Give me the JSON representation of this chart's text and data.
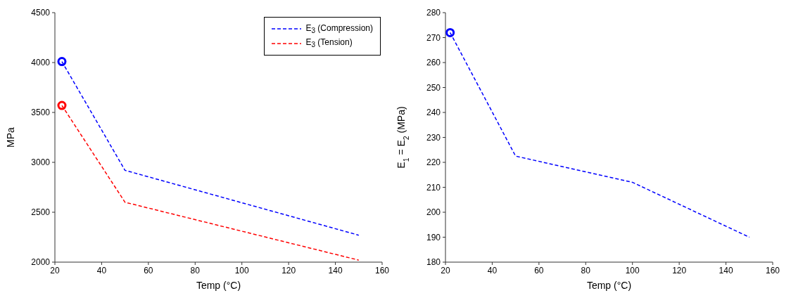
{
  "chart_data": [
    {
      "type": "line",
      "xlabel": "Temp (°C)",
      "ylabel": "MPa",
      "xlim": [
        20,
        160
      ],
      "xticks": [
        20,
        40,
        60,
        80,
        100,
        120,
        140,
        160
      ],
      "ylim": [
        2000,
        4500
      ],
      "yticks": [
        2000,
        2500,
        3000,
        3500,
        4000,
        4500
      ],
      "grid": false,
      "legend": "top right",
      "line_style": "dashed",
      "marker": "none",
      "series": [
        {
          "name": "E$_{3}$ (Compression)",
          "color": "#0000ff",
          "x": [
            23,
            50,
            150
          ],
          "values": [
            4010,
            2920,
            2270
          ]
        },
        {
          "name": "E$_{3}$ (Tension)",
          "color": "#ff0000",
          "x": [
            23,
            50,
            150
          ],
          "values": [
            3570,
            2600,
            2020
          ]
        },
        {
          "type": "scatter",
          "marker": "circle",
          "color": "#0000ff",
          "x": [
            23
          ],
          "values": [
            4010
          ]
        },
        {
          "type": "scatter",
          "marker": "circle",
          "color": "#ff0000",
          "x": [
            23
          ],
          "values": [
            3570
          ]
        }
      ]
    },
    {
      "type": "line",
      "xlabel": "Temp (°C)",
      "ylabel": "E$_{1}$ = E$_{2}$ (MPa)",
      "xlim": [
        20,
        160
      ],
      "xticks": [
        20,
        40,
        60,
        80,
        100,
        120,
        140,
        160
      ],
      "ylim": [
        180,
        280
      ],
      "yticks": [
        180,
        190,
        200,
        210,
        220,
        230,
        240,
        250,
        260,
        270,
        280
      ],
      "grid": false,
      "line_style": "dashed",
      "marker": "none",
      "series": [
        {
          "color": "#0000ff",
          "x": [
            22,
            50,
            100,
            150
          ],
          "values": [
            272,
            222.5,
            212,
            190
          ]
        },
        {
          "type": "scatter",
          "marker": "circle",
          "color": "#0000ff",
          "x": [
            22
          ],
          "values": [
            272
          ]
        }
      ]
    }
  ]
}
